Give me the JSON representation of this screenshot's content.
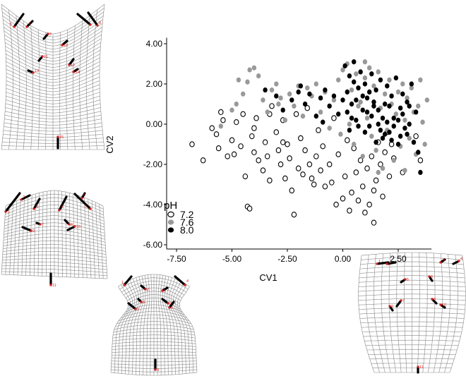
{
  "chart_data": {
    "type": "scatter",
    "xlabel": "CV1",
    "ylabel": "CV2",
    "xlim": [
      -8.6,
      4.0
    ],
    "ylim": [
      -6.2,
      4.3
    ],
    "x_ticks": [
      "-7.50",
      "-5.00",
      "-2.50",
      "0.00",
      "2.50"
    ],
    "x_tick_values": [
      -7.5,
      -5.0,
      -2.5,
      0.0,
      2.5
    ],
    "y_ticks": [
      "4.00",
      "2.00",
      "0.00",
      "-2.00",
      "-4.00",
      "-6.00"
    ],
    "y_tick_values": [
      4.0,
      2.0,
      0.0,
      -2.0,
      -4.0,
      -6.0
    ],
    "grid": false,
    "legend": {
      "title": "pH",
      "placement": "bottom-left",
      "entries": [
        "7.2",
        "7.6",
        "8.0"
      ]
    },
    "series": [
      {
        "name": "7.2",
        "marker": "open-circle",
        "color": "#000000",
        "points": [
          [
            -6.8,
            -1.0
          ],
          [
            -6.3,
            -1.8
          ],
          [
            -5.9,
            -0.2
          ],
          [
            -5.7,
            -0.5
          ],
          [
            -5.6,
            -1.2
          ],
          [
            -5.5,
            0.6
          ],
          [
            -5.4,
            0.2
          ],
          [
            -5.2,
            -1.6
          ],
          [
            -5.0,
            -0.8
          ],
          [
            -4.9,
            -1.5
          ],
          [
            -4.8,
            0.1
          ],
          [
            -4.6,
            -1.1
          ],
          [
            -4.5,
            0.5
          ],
          [
            -4.4,
            -2.6
          ],
          [
            -4.3,
            -4.1
          ],
          [
            -4.2,
            -4.2
          ],
          [
            -4.1,
            -0.6
          ],
          [
            -4.0,
            -1.4
          ],
          [
            -3.9,
            0.3
          ],
          [
            -3.8,
            -1.8
          ],
          [
            -3.6,
            -2.3
          ],
          [
            -3.5,
            -0.9
          ],
          [
            -3.4,
            -1.6
          ],
          [
            -3.3,
            -2.8
          ],
          [
            -3.2,
            0.9
          ],
          [
            -3.0,
            -0.4
          ],
          [
            -2.9,
            -1.3
          ],
          [
            -2.8,
            -2.0
          ],
          [
            -2.7,
            0.2
          ],
          [
            -2.6,
            -2.7
          ],
          [
            -2.5,
            -1.0
          ],
          [
            -2.4,
            -1.7
          ],
          [
            -2.3,
            -3.3
          ],
          [
            -2.2,
            -4.5
          ],
          [
            -2.1,
            0.5
          ],
          [
            -2.0,
            -2.2
          ],
          [
            -1.9,
            -0.7
          ],
          [
            -1.8,
            -2.5
          ],
          [
            -1.7,
            -1.3
          ],
          [
            -1.6,
            0.8
          ],
          [
            -1.5,
            -2.0
          ],
          [
            -1.4,
            -2.7
          ],
          [
            -1.3,
            -3.0
          ],
          [
            -1.2,
            -1.6
          ],
          [
            -1.1,
            -0.3
          ],
          [
            -1.0,
            -2.3
          ],
          [
            -0.9,
            -1.1
          ],
          [
            -0.8,
            -3.1
          ],
          [
            -0.6,
            -2.0
          ],
          [
            -0.5,
            -2.9
          ],
          [
            -0.4,
            0.3
          ],
          [
            -0.3,
            -4.0
          ],
          [
            -0.2,
            -1.5
          ],
          [
            0.0,
            -3.7
          ],
          [
            0.1,
            -2.6
          ],
          [
            0.2,
            -0.8
          ],
          [
            0.3,
            -4.3
          ],
          [
            0.4,
            -3.4
          ],
          [
            0.5,
            -1.2
          ],
          [
            0.6,
            -2.4
          ],
          [
            0.7,
            -3.8
          ],
          [
            0.8,
            -1.8
          ],
          [
            0.9,
            -3.1
          ],
          [
            1.0,
            -4.4
          ],
          [
            1.1,
            -2.2
          ],
          [
            1.2,
            -4.0
          ],
          [
            1.3,
            -1.6
          ],
          [
            1.4,
            -3.3
          ],
          [
            1.5,
            -2.8
          ],
          [
            1.6,
            -0.9
          ],
          [
            1.7,
            -2.0
          ],
          [
            1.8,
            -3.6
          ],
          [
            1.9,
            -1.4
          ],
          [
            2.0,
            -0.4
          ],
          [
            2.1,
            -2.6
          ],
          [
            2.2,
            -1.0
          ],
          [
            2.3,
            -1.7
          ],
          [
            1.4,
            -4.9
          ],
          [
            -4.0,
            -0.2
          ],
          [
            -3.3,
            0.5
          ],
          [
            2.7,
            -2.4
          ],
          [
            3.5,
            -1.8
          ],
          [
            3.3,
            -0.6
          ],
          [
            -2.7,
            -0.9
          ]
        ]
      },
      {
        "name": "7.6",
        "marker": "filled-circle",
        "color": "#999999",
        "points": [
          [
            -5.5,
            -0.1
          ],
          [
            -5.0,
            0.7
          ],
          [
            -4.8,
            1.0
          ],
          [
            -4.5,
            1.5
          ],
          [
            -4.3,
            2.1
          ],
          [
            -4.2,
            2.7
          ],
          [
            -4.0,
            2.8
          ],
          [
            -3.8,
            2.4
          ],
          [
            -3.6,
            1.2
          ],
          [
            -3.4,
            0.6
          ],
          [
            -3.2,
            1.7
          ],
          [
            -3.0,
            2.0
          ],
          [
            -2.8,
            1.3
          ],
          [
            -2.6,
            0.2
          ],
          [
            -2.4,
            1.5
          ],
          [
            -2.2,
            0.9
          ],
          [
            -2.0,
            1.9
          ],
          [
            -1.8,
            0.4
          ],
          [
            -1.6,
            1.8
          ],
          [
            -1.4,
            1.4
          ],
          [
            -1.2,
            2.0
          ],
          [
            -1.0,
            0.6
          ],
          [
            -0.8,
            1.6
          ],
          [
            -0.6,
            -0.2
          ],
          [
            -0.4,
            1.2
          ],
          [
            -0.2,
            2.2
          ],
          [
            0.0,
            2.7
          ],
          [
            0.2,
            3.0
          ],
          [
            0.4,
            1.7
          ],
          [
            0.5,
            -1.0
          ],
          [
            0.6,
            2.5
          ],
          [
            0.8,
            1.1
          ],
          [
            0.9,
            -1.6
          ],
          [
            1.0,
            2.3
          ],
          [
            1.1,
            0.3
          ],
          [
            1.2,
            2.8
          ],
          [
            1.3,
            -0.6
          ],
          [
            1.4,
            1.9
          ],
          [
            1.5,
            -1.3
          ],
          [
            1.6,
            2.6
          ],
          [
            1.7,
            0.8
          ],
          [
            1.8,
            -2.2
          ],
          [
            1.9,
            1.5
          ],
          [
            2.0,
            -0.3
          ],
          [
            2.1,
            2.2
          ],
          [
            2.2,
            1.0
          ],
          [
            2.3,
            -1.8
          ],
          [
            2.4,
            0.5
          ],
          [
            2.5,
            1.6
          ],
          [
            2.6,
            -1.1
          ],
          [
            2.7,
            2.0
          ],
          [
            2.8,
            0.2
          ],
          [
            2.9,
            1.3
          ],
          [
            3.0,
            -0.7
          ],
          [
            3.1,
            1.8
          ],
          [
            3.2,
            0.6
          ],
          [
            3.3,
            -1.5
          ],
          [
            3.4,
            0.9
          ],
          [
            3.5,
            2.2
          ],
          [
            3.6,
            0.1
          ],
          [
            3.7,
            -1.0
          ],
          [
            3.8,
            1.2
          ],
          [
            1.0,
            3.1
          ],
          [
            0.3,
            0.0
          ],
          [
            -0.1,
            -0.5
          ],
          [
            2.8,
            -2.3
          ],
          [
            1.6,
            -2.4
          ],
          [
            0.7,
            0.9
          ],
          [
            -4.7,
            2.2
          ],
          [
            -2.9,
            1.0
          ]
        ]
      },
      {
        "name": "8.0",
        "marker": "filled-circle",
        "color": "#000000",
        "points": [
          [
            -3.5,
            1.7
          ],
          [
            -3.0,
            1.4
          ],
          [
            -2.7,
            0.7
          ],
          [
            -2.3,
            1.2
          ],
          [
            -2.0,
            1.6
          ],
          [
            -1.7,
            1.0
          ],
          [
            -1.5,
            1.5
          ],
          [
            -1.2,
            0.4
          ],
          [
            -1.0,
            1.3
          ],
          [
            -0.8,
            1.7
          ],
          [
            -0.6,
            0.9
          ],
          [
            -0.4,
            1.4
          ],
          [
            -0.2,
            0.5
          ],
          [
            0.0,
            1.2
          ],
          [
            0.1,
            2.9
          ],
          [
            0.2,
            1.6
          ],
          [
            0.3,
            2.4
          ],
          [
            0.4,
            1.0
          ],
          [
            0.5,
            3.1
          ],
          [
            0.6,
            0.2
          ],
          [
            0.7,
            1.8
          ],
          [
            0.8,
            2.6
          ],
          [
            0.9,
            0.7
          ],
          [
            1.0,
            2.0
          ],
          [
            1.1,
            1.3
          ],
          [
            1.2,
            -0.1
          ],
          [
            1.3,
            2.5
          ],
          [
            1.4,
            0.9
          ],
          [
            1.5,
            1.7
          ],
          [
            1.6,
            0.0
          ],
          [
            1.7,
            2.2
          ],
          [
            1.8,
            -0.7
          ],
          [
            1.9,
            1.0
          ],
          [
            2.0,
            1.9
          ],
          [
            2.1,
            -0.4
          ],
          [
            2.2,
            1.4
          ],
          [
            2.3,
            0.3
          ],
          [
            2.4,
            2.3
          ],
          [
            2.5,
            -1.0
          ],
          [
            2.6,
            0.8
          ],
          [
            2.7,
            1.5
          ],
          [
            2.8,
            -0.2
          ],
          [
            2.9,
            1.1
          ],
          [
            3.0,
            0.0
          ],
          [
            3.1,
            2.0
          ],
          [
            3.2,
            -0.9
          ],
          [
            3.3,
            0.6
          ],
          [
            3.4,
            -1.4
          ],
          [
            3.5,
            -2.4
          ],
          [
            0.5,
            2.1
          ],
          [
            0.9,
            1.4
          ],
          [
            1.3,
            0.4
          ],
          [
            1.7,
            -0.3
          ],
          [
            2.1,
            0.9
          ],
          [
            2.5,
            0.2
          ],
          [
            2.9,
            -0.5
          ],
          [
            0.3,
            -0.3
          ],
          [
            0.7,
            -0.1
          ],
          [
            1.1,
            0.6
          ],
          [
            1.5,
            -0.9
          ],
          [
            1.9,
            -0.5
          ],
          [
            2.3,
            -0.1
          ],
          [
            2.7,
            0.5
          ],
          [
            0.2,
            0.6
          ],
          [
            1.0,
            -0.4
          ],
          [
            1.8,
            0.3
          ],
          [
            2.6,
            -0.6
          ],
          [
            3.0,
            0.9
          ],
          [
            0.6,
            1.2
          ],
          [
            1.4,
            1.1
          ],
          [
            2.2,
            -0.8
          ],
          [
            1.6,
            0.7
          ],
          [
            2.0,
            0.1
          ],
          [
            0.4,
            0.3
          ],
          [
            1.2,
            1.6
          ],
          [
            -0.9,
            0.1
          ],
          [
            -1.9,
            1.9
          ]
        ]
      }
    ]
  },
  "grids": [
    {
      "name": "grid-top-left",
      "landmarks": [
        "5",
        "6",
        "7",
        "8",
        "9",
        "10",
        "11",
        "12",
        "13",
        "14",
        "15",
        "1"
      ]
    },
    {
      "name": "grid-mid-left",
      "landmarks": [
        "1",
        "2",
        "3",
        "4",
        "5",
        "6",
        "7",
        "8",
        "9",
        "10",
        "11"
      ]
    },
    {
      "name": "grid-bottom-center",
      "landmarks": [
        "1",
        "2",
        "3",
        "4",
        "5",
        "6",
        "7",
        "8",
        "9",
        "10",
        "11"
      ]
    },
    {
      "name": "grid-bottom-right",
      "landmarks": [
        "1",
        "2",
        "3",
        "4",
        "5",
        "6",
        "7",
        "8",
        "9",
        "10",
        "11"
      ]
    }
  ]
}
